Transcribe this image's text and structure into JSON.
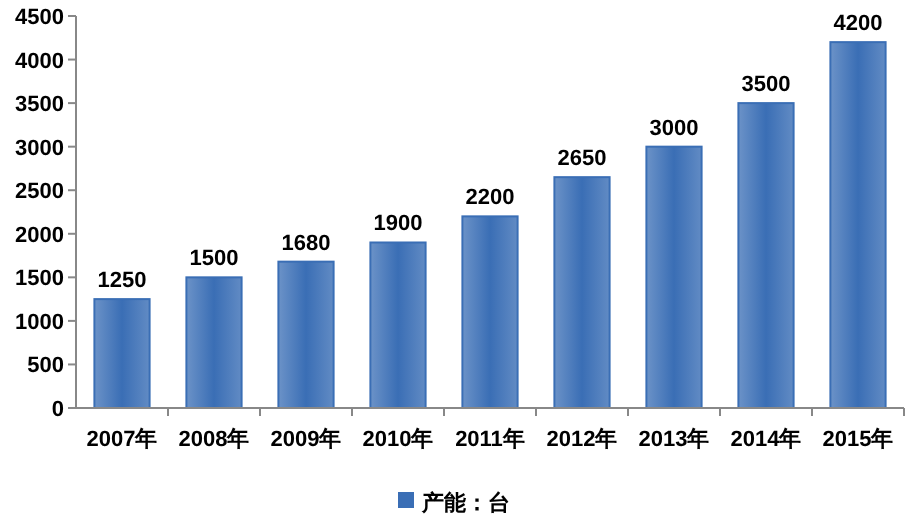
{
  "chart_data": {
    "type": "bar",
    "categories": [
      "2007年",
      "2008年",
      "2009年",
      "2010年",
      "2011年",
      "2012年",
      "2013年",
      "2014年",
      "2015年"
    ],
    "series": [
      {
        "name": "产能：台",
        "color": "#3a6eb5",
        "values": [
          1250,
          1500,
          1680,
          1900,
          2200,
          2650,
          3000,
          3500,
          4200
        ]
      }
    ],
    "ylim": [
      0,
      4500
    ],
    "yticks": [
      0,
      500,
      1000,
      1500,
      2000,
      2500,
      3000,
      3500,
      4000,
      4500
    ],
    "data_labels": true,
    "legend": "bottom",
    "grid": false
  }
}
